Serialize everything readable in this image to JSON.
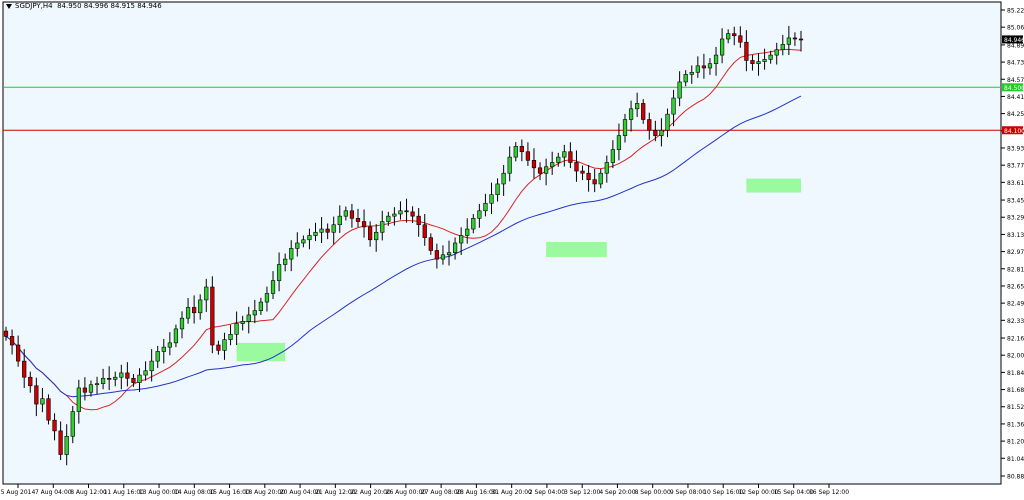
{
  "header": {
    "symbol_label": "SGDJPY,H4",
    "ohlc": "84.950 84.996 84.915 84.946"
  },
  "chart_data": {
    "type": "candlestick",
    "title": "SGDJPY,H4",
    "ylim": [
      80.88,
      85.22
    ],
    "y_ticks": [
      "85.220",
      "85.060",
      "84.895",
      "84.735",
      "84.575",
      "84.415",
      "84.255",
      "84.095",
      "83.935",
      "83.775",
      "83.615",
      "83.450",
      "83.290",
      "83.130",
      "82.970",
      "82.810",
      "82.650",
      "82.490",
      "82.330",
      "82.165",
      "82.005",
      "81.845",
      "81.685",
      "81.525",
      "81.365",
      "81.205",
      "81.045",
      "80.880"
    ],
    "x_ticks": [
      "5 Aug 2014",
      "7 Aug 04:00",
      "8 Aug 12:00",
      "11 Aug 16:00",
      "13 Aug 00:00",
      "14 Aug 08:00",
      "15 Aug 16:00",
      "18 Aug 20:00",
      "20 Aug 04:00",
      "21 Aug 12:00",
      "22 Aug 20:00",
      "26 Aug 00:00",
      "27 Aug 08:00",
      "28 Aug 16:00",
      "31 Aug 20:00",
      "2 Sep 04:00",
      "3 Sep 12:00",
      "4 Sep 20:00",
      "8 Sep 00:00",
      "9 Sep 08:00",
      "10 Sep 16:00",
      "12 Sep 00:00",
      "15 Sep 04:00",
      "16 Sep 12:00"
    ],
    "price_labels": {
      "current": "84.946",
      "green_level": "84.500",
      "red_level": "84.100"
    },
    "levels": [
      {
        "value": 84.5,
        "color": "#22cc22"
      },
      {
        "value": 84.1,
        "color": "#cc0000"
      }
    ],
    "close_series": [
      82.18,
      82.1,
      81.95,
      81.8,
      81.72,
      81.55,
      81.6,
      81.4,
      81.3,
      81.08,
      81.25,
      81.48,
      81.7,
      81.66,
      81.73,
      81.74,
      81.79,
      81.78,
      81.8,
      81.84,
      81.79,
      81.75,
      81.82,
      81.86,
      81.95,
      82.04,
      82.08,
      82.12,
      82.25,
      82.35,
      82.45,
      82.4,
      82.52,
      82.64,
      82.1,
      82.05,
      82.15,
      82.2,
      82.3,
      82.32,
      82.38,
      82.42,
      82.5,
      82.58,
      82.7,
      82.85,
      82.9,
      83.0,
      83.05,
      83.08,
      83.12,
      83.15,
      83.18,
      83.15,
      83.22,
      83.3,
      83.35,
      83.28,
      83.25,
      83.2,
      83.08,
      83.15,
      83.25,
      83.3,
      83.32,
      83.35,
      83.34,
      83.3,
      83.22,
      83.1,
      82.98,
      82.9,
      82.94,
      82.96,
      83.05,
      83.12,
      83.18,
      83.28,
      83.35,
      83.42,
      83.5,
      83.6,
      83.7,
      83.85,
      83.95,
      83.9,
      83.82,
      83.75,
      83.7,
      83.76,
      83.8,
      83.85,
      83.9,
      83.8,
      83.72,
      83.7,
      83.64,
      83.6,
      83.7,
      83.8,
      83.92,
      84.05,
      84.2,
      84.3,
      84.35,
      84.2,
      84.1,
      84.05,
      84.1,
      84.25,
      84.4,
      84.55,
      84.62,
      84.64,
      84.7,
      84.68,
      84.72,
      84.8,
      84.95,
      85.0,
      84.98,
      84.92,
      84.75,
      84.72,
      84.74,
      84.76,
      84.8,
      84.85,
      84.9,
      84.96,
      84.95,
      84.946
    ],
    "moving_averages": [
      {
        "color": "#dd2222",
        "period_bars": 11
      },
      {
        "color": "#2233cc",
        "period_bars": 40
      }
    ],
    "highlight_zones": [
      {
        "x_from": 38,
        "x_to": 46,
        "y_from": 81.95,
        "y_to": 82.12
      },
      {
        "x_from": 89,
        "x_to": 99,
        "y_from": 82.92,
        "y_to": 83.06
      },
      {
        "x_from": 122,
        "x_to": 131,
        "y_from": 83.52,
        "y_to": 83.65
      }
    ],
    "grid": false
  }
}
